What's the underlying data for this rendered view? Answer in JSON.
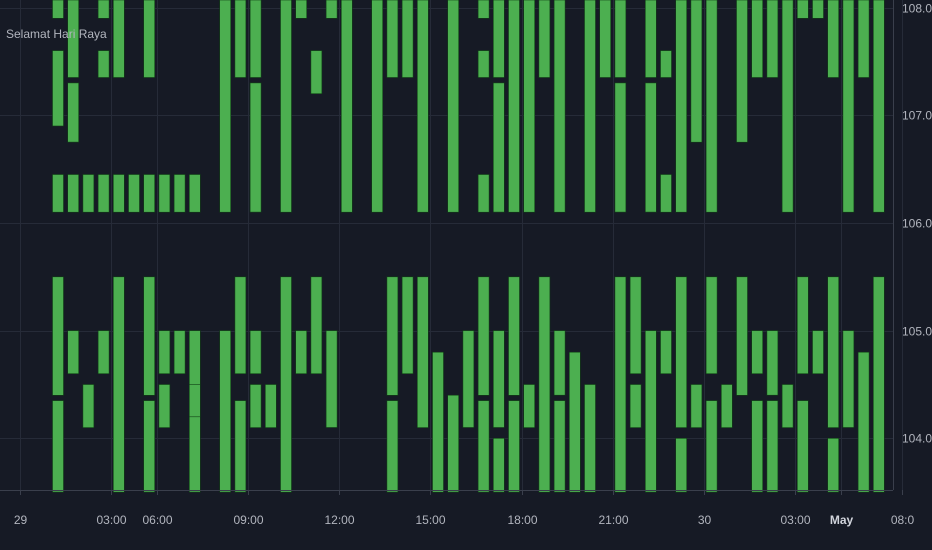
{
  "chart_title": "Selamat Hari Raya",
  "colors": {
    "background": "#161a25",
    "grid": "#262b38",
    "candle_fill": "#4caf50",
    "candle_border": "#0f3f14",
    "text": "#b2b5be"
  },
  "chart_data": {
    "type": "candlestick",
    "title": "Selamat Hari Raya",
    "y_ticks": [
      "108.00",
      "107.00",
      "106.00",
      "105.00",
      "104.00"
    ],
    "ylim": [
      103.52,
      108.07
    ],
    "x_ticks": [
      {
        "label": "29",
        "slot": 0
      },
      {
        "label": "03:00",
        "slot": 6
      },
      {
        "label": "06:00",
        "slot": 9
      },
      {
        "label": "09:00",
        "slot": 15
      },
      {
        "label": "12:00",
        "slot": 21
      },
      {
        "label": "15:00",
        "slot": 27
      },
      {
        "label": "18:00",
        "slot": 33
      },
      {
        "label": "21:00",
        "slot": 39
      },
      {
        "label": "30",
        "slot": 45
      },
      {
        "label": "03:00",
        "slot": 51
      },
      {
        "label": "May",
        "slot": 54,
        "bold": true
      },
      {
        "label": "08:0",
        "slot": 58
      }
    ],
    "grid": true,
    "note": "Candle bodies arranged to spell a greeting; each candle is [slot, body_low, body_high] in price units.",
    "candles": [
      [
        2,
        107.9,
        108.5
      ],
      [
        2,
        106.9,
        107.6
      ],
      [
        2,
        106.1,
        106.45
      ],
      [
        3,
        107.35,
        108.5
      ],
      [
        3,
        106.75,
        107.3
      ],
      [
        3,
        106.1,
        106.45
      ],
      [
        4,
        106.1,
        106.45
      ],
      [
        5,
        107.9,
        108.5
      ],
      [
        5,
        107.35,
        107.6
      ],
      [
        5,
        106.1,
        106.45
      ],
      [
        6,
        107.35,
        108.5
      ],
      [
        6,
        106.1,
        106.45
      ],
      [
        7,
        106.1,
        106.45
      ],
      [
        8,
        107.35,
        108.5
      ],
      [
        8,
        106.1,
        106.45
      ],
      [
        9,
        106.1,
        106.45
      ],
      [
        10,
        106.1,
        106.45
      ],
      [
        11,
        106.1,
        106.45
      ],
      [
        13,
        106.1,
        108.5
      ],
      [
        14,
        107.35,
        108.5
      ],
      [
        15,
        107.35,
        108.5
      ],
      [
        15,
        106.1,
        107.3
      ],
      [
        17,
        106.1,
        108.5
      ],
      [
        18,
        107.9,
        108.5
      ],
      [
        19,
        107.2,
        107.6
      ],
      [
        20,
        107.9,
        108.5
      ],
      [
        21,
        106.1,
        108.5
      ],
      [
        23,
        106.1,
        108.5
      ],
      [
        24,
        107.35,
        108.5
      ],
      [
        25,
        107.35,
        108.5
      ],
      [
        26,
        106.1,
        108.5
      ],
      [
        28,
        106.1,
        108.5
      ],
      [
        30,
        107.9,
        108.5
      ],
      [
        30,
        107.35,
        107.6
      ],
      [
        30,
        106.1,
        106.45
      ],
      [
        31,
        107.35,
        108.5
      ],
      [
        31,
        106.1,
        107.3
      ],
      [
        32,
        106.1,
        108.5
      ],
      [
        33,
        106.1,
        108.5
      ],
      [
        34,
        107.35,
        108.5
      ],
      [
        35,
        106.1,
        108.5
      ],
      [
        37,
        106.1,
        108.5
      ],
      [
        38,
        107.35,
        108.5
      ],
      [
        39,
        107.35,
        108.5
      ],
      [
        39,
        106.1,
        107.3
      ],
      [
        41,
        107.35,
        108.5
      ],
      [
        41,
        106.1,
        107.3
      ],
      [
        42,
        107.35,
        107.6
      ],
      [
        42,
        106.1,
        106.45
      ],
      [
        43,
        106.1,
        108.5
      ],
      [
        44,
        106.75,
        108.5
      ],
      [
        45,
        106.1,
        108.5
      ],
      [
        47,
        106.75,
        108.5
      ],
      [
        48,
        107.35,
        108.5
      ],
      [
        49,
        107.35,
        108.5
      ],
      [
        50,
        106.1,
        108.5
      ],
      [
        51,
        107.9,
        108.5
      ],
      [
        52,
        107.9,
        108.5
      ],
      [
        53,
        107.35,
        108.5
      ],
      [
        54,
        106.1,
        108.5
      ],
      [
        55,
        107.35,
        108.5
      ],
      [
        56,
        106.1,
        108.5
      ],
      [
        2,
        104.4,
        105.5
      ],
      [
        2,
        103.5,
        104.35
      ],
      [
        3,
        104.6,
        105.0
      ],
      [
        4,
        104.1,
        104.5
      ],
      [
        5,
        104.6,
        105.0
      ],
      [
        6,
        103.5,
        105.5
      ],
      [
        8,
        104.4,
        105.5
      ],
      [
        8,
        103.5,
        104.35
      ],
      [
        9,
        104.6,
        105.0
      ],
      [
        9,
        104.1,
        104.5
      ],
      [
        10,
        104.6,
        105.0
      ],
      [
        11,
        103.5,
        105.0
      ],
      [
        11,
        104.2,
        104.5
      ],
      [
        13,
        103.5,
        105.0
      ],
      [
        14,
        104.6,
        105.5
      ],
      [
        14,
        103.5,
        104.35
      ],
      [
        15,
        104.6,
        105.0
      ],
      [
        15,
        104.1,
        104.5
      ],
      [
        16,
        104.1,
        104.5
      ],
      [
        17,
        103.5,
        105.5
      ],
      [
        18,
        104.6,
        105.0
      ],
      [
        19,
        104.6,
        105.5
      ],
      [
        20,
        104.1,
        105.0
      ],
      [
        24,
        104.4,
        105.5
      ],
      [
        24,
        103.5,
        104.35
      ],
      [
        25,
        104.6,
        105.5
      ],
      [
        26,
        104.1,
        105.5
      ],
      [
        27,
        103.5,
        104.8
      ],
      [
        28,
        103.5,
        104.4
      ],
      [
        29,
        104.1,
        105.0
      ],
      [
        30,
        104.4,
        105.5
      ],
      [
        30,
        103.5,
        104.35
      ],
      [
        31,
        104.1,
        105.0
      ],
      [
        31,
        103.5,
        104.0
      ],
      [
        32,
        104.4,
        105.5
      ],
      [
        32,
        103.5,
        104.35
      ],
      [
        33,
        104.1,
        104.5
      ],
      [
        34,
        103.5,
        105.5
      ],
      [
        35,
        104.4,
        105.0
      ],
      [
        35,
        103.5,
        104.35
      ],
      [
        36,
        103.5,
        104.8
      ],
      [
        37,
        103.5,
        104.5
      ],
      [
        39,
        103.5,
        105.5
      ],
      [
        40,
        104.6,
        105.5
      ],
      [
        40,
        104.1,
        104.5
      ],
      [
        41,
        103.5,
        105.0
      ],
      [
        42,
        104.6,
        105.0
      ],
      [
        43,
        104.1,
        105.5
      ],
      [
        43,
        103.5,
        104.0
      ],
      [
        44,
        104.1,
        104.5
      ],
      [
        45,
        104.6,
        105.5
      ],
      [
        45,
        103.5,
        104.35
      ],
      [
        46,
        104.1,
        104.5
      ],
      [
        47,
        104.4,
        105.5
      ],
      [
        48,
        104.6,
        105.0
      ],
      [
        48,
        103.5,
        104.35
      ],
      [
        49,
        104.4,
        105.0
      ],
      [
        49,
        103.5,
        104.35
      ],
      [
        50,
        104.1,
        104.5
      ],
      [
        51,
        104.6,
        105.5
      ],
      [
        51,
        103.5,
        104.35
      ],
      [
        52,
        104.6,
        105.0
      ],
      [
        53,
        104.1,
        105.5
      ],
      [
        53,
        103.5,
        104.0
      ],
      [
        54,
        104.1,
        105.0
      ],
      [
        55,
        103.5,
        104.8
      ],
      [
        56,
        103.5,
        105.5
      ]
    ]
  }
}
